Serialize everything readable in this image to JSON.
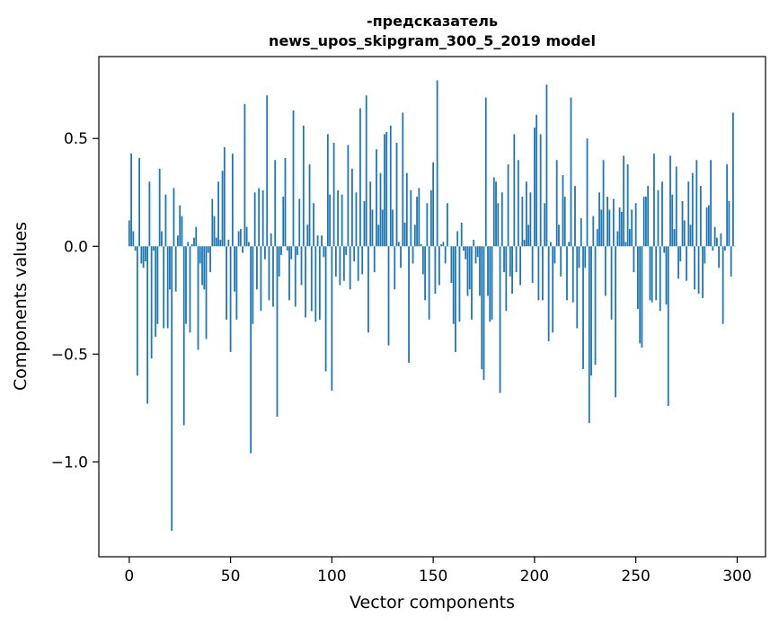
{
  "chart_data": {
    "type": "bar",
    "title": "-предсказатель",
    "subtitle": "news_upos_skipgram_300_5_2019 model",
    "xlabel": "Vector components",
    "ylabel": "Components values",
    "xlim": [
      -15,
      314
    ],
    "ylim": [
      -1.44,
      0.88
    ],
    "xticks": [
      0,
      50,
      100,
      150,
      200,
      250,
      300
    ],
    "xtick_labels": [
      "0",
      "50",
      "100",
      "150",
      "200",
      "250",
      "300"
    ],
    "yticks": [
      -1.0,
      -0.5,
      0.0,
      0.5
    ],
    "ytick_labels": [
      "−1.0",
      "−0.5",
      "0.0",
      "0.5"
    ],
    "grid": false,
    "bar_color": "#1f77b4",
    "keyframes": [
      [
        0,
        0.12
      ],
      [
        1,
        0.43
      ],
      [
        2,
        0.07
      ],
      [
        3,
        -0.02
      ],
      [
        4,
        -0.6
      ],
      [
        5,
        0.41
      ],
      [
        6,
        -0.08
      ],
      [
        7,
        -0.1
      ],
      [
        8,
        -0.07
      ],
      [
        9,
        -0.73
      ],
      [
        10,
        0.3
      ],
      [
        11,
        -0.52
      ],
      [
        12,
        -0.02
      ],
      [
        13,
        -0.42
      ],
      [
        14,
        -0.36
      ],
      [
        15,
        0.36
      ],
      [
        16,
        0.07
      ],
      [
        17,
        -0.38
      ],
      [
        18,
        0.24
      ],
      [
        19,
        -0.38
      ],
      [
        20,
        -0.2
      ],
      [
        21,
        -1.32
      ],
      [
        22,
        0.27
      ],
      [
        23,
        -0.21
      ],
      [
        24,
        0.05
      ],
      [
        25,
        0.19
      ],
      [
        26,
        0.14
      ],
      [
        27,
        -0.83
      ],
      [
        28,
        -0.36
      ],
      [
        29,
        0.02
      ],
      [
        30,
        -0.4
      ],
      [
        31,
        0.01
      ],
      [
        32,
        0.04
      ],
      [
        33,
        0.09
      ],
      [
        34,
        -0.48
      ],
      [
        35,
        -0.08
      ],
      [
        36,
        -0.18
      ],
      [
        37,
        -0.2
      ],
      [
        38,
        -0.43
      ],
      [
        39,
        -0.03
      ],
      [
        40,
        -0.12
      ],
      [
        41,
        0.22
      ],
      [
        42,
        0.14
      ],
      [
        43,
        0.04
      ],
      [
        44,
        0.3
      ],
      [
        45,
        0.03
      ],
      [
        46,
        0.35
      ],
      [
        47,
        0.46
      ],
      [
        48,
        -0.34
      ],
      [
        49,
        0.03
      ],
      [
        50,
        -0.49
      ],
      [
        51,
        0.43
      ],
      [
        52,
        -0.21
      ],
      [
        53,
        -0.34
      ],
      [
        54,
        0.07
      ],
      [
        55,
        0.08
      ],
      [
        56,
        -0.03
      ],
      [
        57,
        0.66
      ],
      [
        58,
        0.09
      ],
      [
        59,
        0.02
      ],
      [
        60,
        -0.96
      ],
      [
        61,
        -0.36
      ],
      [
        62,
        0.25
      ],
      [
        63,
        -0.2
      ],
      [
        64,
        0.27
      ],
      [
        65,
        -0.3
      ],
      [
        66,
        0.26
      ],
      [
        67,
        -0.06
      ],
      [
        68,
        0.7
      ],
      [
        69,
        -0.25
      ],
      [
        70,
        0.06
      ],
      [
        71,
        -0.28
      ],
      [
        72,
        0.4
      ],
      [
        73,
        -0.79
      ],
      [
        74,
        -0.14
      ],
      [
        75,
        -0.04
      ],
      [
        76,
        0.23
      ],
      [
        77,
        0.41
      ],
      [
        78,
        -0.02
      ],
      [
        79,
        -0.25
      ],
      [
        80,
        -0.06
      ],
      [
        81,
        0.63
      ],
      [
        82,
        -0.28
      ],
      [
        83,
        -0.04
      ],
      [
        84,
        0.22
      ],
      [
        85,
        -0.18
      ],
      [
        86,
        0.56
      ],
      [
        87,
        -0.33
      ],
      [
        88,
        0.1
      ],
      [
        89,
        0.38
      ],
      [
        90,
        -0.3
      ],
      [
        91,
        0.2
      ],
      [
        92,
        -0.35
      ],
      [
        93,
        0.05
      ],
      [
        94,
        -0.34
      ],
      [
        95,
        0.05
      ],
      [
        96,
        -0.05
      ],
      [
        97,
        -0.58
      ],
      [
        98,
        0.52
      ],
      [
        99,
        0.24
      ],
      [
        100,
        -0.67
      ],
      [
        101,
        0.48
      ],
      [
        102,
        -0.14
      ],
      [
        103,
        0.26
      ],
      [
        104,
        -0.18
      ],
      [
        105,
        0.24
      ],
      [
        106,
        -0.16
      ],
      [
        107,
        -0.04
      ],
      [
        108,
        0.47
      ],
      [
        109,
        -0.2
      ],
      [
        110,
        0.36
      ],
      [
        111,
        -0.07
      ],
      [
        112,
        0.25
      ],
      [
        113,
        -0.16
      ],
      [
        114,
        0.64
      ],
      [
        115,
        -0.13
      ],
      [
        116,
        0.21
      ],
      [
        117,
        0.7
      ],
      [
        118,
        -0.4
      ],
      [
        119,
        0.3
      ],
      [
        120,
        0.17
      ],
      [
        121,
        -0.12
      ],
      [
        122,
        0.45
      ],
      [
        123,
        0.1
      ],
      [
        124,
        0.34
      ],
      [
        125,
        0.17
      ],
      [
        126,
        0.52
      ],
      [
        127,
        0.53
      ],
      [
        128,
        -0.46
      ],
      [
        129,
        0.56
      ],
      [
        130,
        0.17
      ],
      [
        131,
        -0.2
      ],
      [
        132,
        0.48
      ],
      [
        133,
        0.02
      ],
      [
        134,
        -0.1
      ],
      [
        135,
        0.62
      ],
      [
        136,
        0.11
      ],
      [
        137,
        0.34
      ],
      [
        138,
        -0.54
      ],
      [
        139,
        0.26
      ],
      [
        140,
        -0.08
      ],
      [
        141,
        0.1
      ],
      [
        142,
        0.23
      ],
      [
        143,
        0.27
      ],
      [
        144,
        0.01
      ],
      [
        145,
        -0.13
      ],
      [
        146,
        -0.25
      ],
      [
        147,
        0.2
      ],
      [
        148,
        -0.34
      ],
      [
        149,
        0.26
      ],
      [
        150,
        0.39
      ],
      [
        151,
        -0.22
      ],
      [
        152,
        0.77
      ],
      [
        153,
        -0.18
      ],
      [
        154,
        0.01
      ],
      [
        155,
        0.02
      ],
      [
        156,
        -0.08
      ],
      [
        157,
        0.2
      ],
      [
        158,
        0.0
      ],
      [
        159,
        -0.17
      ],
      [
        160,
        -0.36
      ],
      [
        161,
        -0.49
      ],
      [
        162,
        0.07
      ],
      [
        163,
        -0.35
      ],
      [
        164,
        0.11
      ],
      [
        165,
        -0.02
      ],
      [
        166,
        -0.06
      ],
      [
        167,
        -0.23
      ],
      [
        168,
        -0.2
      ],
      [
        169,
        -0.34
      ],
      [
        170,
        0.03
      ],
      [
        171,
        -0.08
      ],
      [
        172,
        -0.05
      ],
      [
        173,
        -0.23
      ],
      [
        174,
        -0.57
      ],
      [
        175,
        -0.62
      ],
      [
        176,
        0.69
      ],
      [
        177,
        -0.23
      ],
      [
        178,
        -0.35
      ],
      [
        179,
        -0.34
      ],
      [
        180,
        0.32
      ],
      [
        181,
        0.3
      ],
      [
        182,
        0.2
      ],
      [
        183,
        -0.68
      ],
      [
        184,
        0.25
      ],
      [
        185,
        -0.12
      ],
      [
        186,
        -0.3
      ],
      [
        187,
        0.38
      ],
      [
        188,
        -0.14
      ],
      [
        189,
        -0.22
      ],
      [
        190,
        0.52
      ],
      [
        191,
        -0.12
      ],
      [
        192,
        0.4
      ],
      [
        193,
        -0.18
      ],
      [
        194,
        0.23
      ],
      [
        195,
        0.03
      ],
      [
        196,
        0.3
      ],
      [
        197,
        0.1
      ],
      [
        198,
        0.25
      ],
      [
        199,
        -0.17
      ],
      [
        200,
        0.55
      ],
      [
        201,
        0.61
      ],
      [
        202,
        -0.25
      ],
      [
        203,
        0.52
      ],
      [
        204,
        -0.25
      ],
      [
        205,
        0.2
      ],
      [
        206,
        0.75
      ],
      [
        207,
        -0.44
      ],
      [
        208,
        0.02
      ],
      [
        209,
        -0.4
      ],
      [
        210,
        -0.08
      ],
      [
        211,
        0.4
      ],
      [
        212,
        0.1
      ],
      [
        213,
        -0.14
      ],
      [
        214,
        0.33
      ],
      [
        215,
        0.23
      ],
      [
        216,
        -0.25
      ],
      [
        217,
        0.02
      ],
      [
        218,
        0.69
      ],
      [
        219,
        -0.26
      ],
      [
        220,
        0.28
      ],
      [
        221,
        -0.38
      ],
      [
        222,
        -0.1
      ],
      [
        223,
        0.13
      ],
      [
        224,
        -0.57
      ],
      [
        225,
        -0.1
      ],
      [
        226,
        0.5
      ],
      [
        227,
        -0.82
      ],
      [
        228,
        -0.6
      ],
      [
        229,
        0.14
      ],
      [
        230,
        -0.55
      ],
      [
        231,
        0.08
      ],
      [
        232,
        0.25
      ],
      [
        233,
        0.17
      ],
      [
        234,
        0.4
      ],
      [
        235,
        -0.23
      ],
      [
        236,
        0.23
      ],
      [
        237,
        0.17
      ],
      [
        238,
        -0.34
      ],
      [
        239,
        0.22
      ],
      [
        240,
        -0.7
      ],
      [
        241,
        0.07
      ],
      [
        242,
        0.18
      ],
      [
        243,
        0.16
      ],
      [
        244,
        0.42
      ],
      [
        245,
        0.02
      ],
      [
        246,
        0.38
      ],
      [
        247,
        0.08
      ],
      [
        248,
        0.17
      ],
      [
        249,
        -0.12
      ],
      [
        250,
        0.2
      ],
      [
        251,
        -0.29
      ],
      [
        252,
        -0.45
      ],
      [
        253,
        -0.47
      ],
      [
        254,
        0.23
      ],
      [
        255,
        0.23
      ],
      [
        256,
        0.28
      ],
      [
        257,
        -0.25
      ],
      [
        258,
        -0.26
      ],
      [
        259,
        0.43
      ],
      [
        260,
        -0.25
      ],
      [
        261,
        0.26
      ],
      [
        262,
        -0.3
      ],
      [
        263,
        0.3
      ],
      [
        264,
        -0.03
      ],
      [
        265,
        -0.27
      ],
      [
        266,
        -0.74
      ],
      [
        267,
        0.42
      ],
      [
        268,
        0.24
      ],
      [
        269,
        0.08
      ],
      [
        270,
        0.37
      ],
      [
        271,
        -0.15
      ],
      [
        272,
        -0.07
      ],
      [
        273,
        0.21
      ],
      [
        274,
        0.12
      ],
      [
        275,
        -0.16
      ],
      [
        276,
        0.3
      ],
      [
        277,
        0.1
      ],
      [
        278,
        0.34
      ],
      [
        279,
        -0.2
      ],
      [
        280,
        0.4
      ],
      [
        281,
        -0.22
      ],
      [
        282,
        0.28
      ],
      [
        283,
        -0.24
      ],
      [
        284,
        -0.08
      ],
      [
        285,
        0.18
      ],
      [
        286,
        0.19
      ],
      [
        287,
        0.4
      ],
      [
        288,
        -0.02
      ],
      [
        289,
        0.09
      ],
      [
        290,
        0.04
      ],
      [
        291,
        -0.1
      ],
      [
        292,
        0.06
      ],
      [
        293,
        -0.36
      ],
      [
        294,
        -0.02
      ],
      [
        295,
        0.38
      ],
      [
        296,
        0.21
      ],
      [
        297,
        -0.14
      ],
      [
        298,
        0.62
      ],
      [
        299,
        0.0
      ]
    ]
  }
}
